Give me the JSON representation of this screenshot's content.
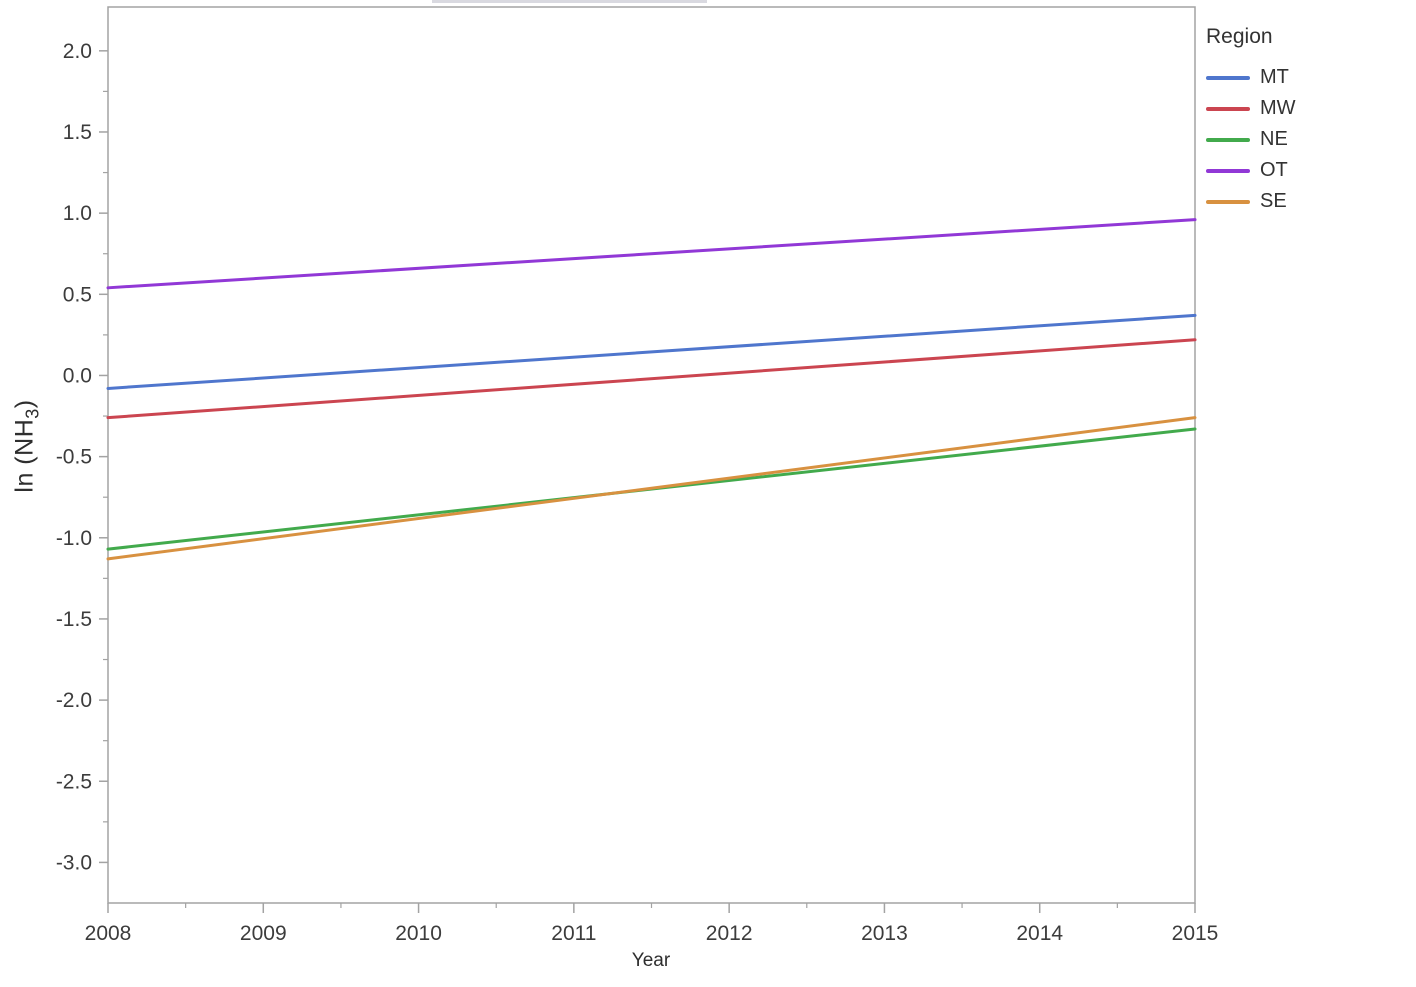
{
  "chart_data": {
    "type": "line",
    "title": "",
    "xlabel": "Year",
    "ylabel": {
      "prefix": "ln (NH",
      "sub": "3",
      "suffix": ")"
    },
    "xlim": [
      2008,
      2015
    ],
    "ylim": [
      -3.25,
      2.27
    ],
    "x_ticks": [
      2008,
      2009,
      2010,
      2011,
      2012,
      2013,
      2014,
      2015
    ],
    "y_ticks": [
      2.0,
      1.5,
      1.0,
      0.5,
      0.0,
      -0.5,
      -1.0,
      -1.5,
      -2.0,
      -2.5,
      -3.0
    ],
    "grid": false,
    "axis_color": "#a3a3a3",
    "tick_label_color": "#3c3c3c",
    "legend": {
      "title": "Region",
      "position": "top-right"
    },
    "series": [
      {
        "name": "MT",
        "color": "#4f76cd",
        "x": [
          2008,
          2015
        ],
        "y": [
          -0.08,
          0.37
        ]
      },
      {
        "name": "MW",
        "color": "#cb4550",
        "x": [
          2008,
          2015
        ],
        "y": [
          -0.26,
          0.22
        ]
      },
      {
        "name": "NE",
        "color": "#42aa4c",
        "x": [
          2008,
          2015
        ],
        "y": [
          -1.07,
          -0.33
        ]
      },
      {
        "name": "OT",
        "color": "#9138d6",
        "x": [
          2008,
          2015
        ],
        "y": [
          0.54,
          0.96
        ]
      },
      {
        "name": "SE",
        "color": "#d89140",
        "x": [
          2008,
          2015
        ],
        "y": [
          -1.13,
          -0.26
        ]
      }
    ]
  }
}
